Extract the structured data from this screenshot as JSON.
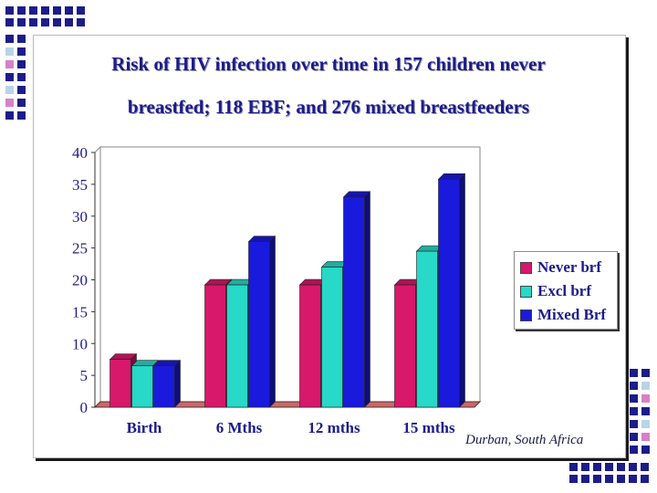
{
  "colors": {
    "title": "#1c1c8a",
    "axis_text": "#1c1c8a",
    "deco_square": "#1c1c8a",
    "deco_light": "#b8d4e8",
    "deco_pink": "#d880c8"
  },
  "chart_data": {
    "type": "bar",
    "title": "Risk of HIV infection over time in 157 children never breastfed; 118 EBF; and 276 mixed breastfeeders",
    "title_lines": [
      "Risk of HIV infection over time in 157 children never",
      "breastfed; 118 EBF; and 276 mixed breastfeeders"
    ],
    "categories": [
      "Birth",
      "6 Mths",
      "12 mths",
      "15 mths"
    ],
    "series": [
      {
        "name": "Never brf",
        "color": "#d8186a",
        "values": [
          7.5,
          19.2,
          19.2,
          19.2
        ]
      },
      {
        "name": "Excl brf",
        "color": "#28d8c8",
        "values": [
          6.5,
          19.2,
          22.0,
          24.5
        ]
      },
      {
        "name": "Mixed Brf",
        "color": "#1a1adc",
        "values": [
          6.5,
          26.0,
          33.0,
          35.8
        ]
      }
    ],
    "yticks": [
      0,
      5,
      10,
      15,
      20,
      25,
      30,
      35,
      40
    ],
    "ylim": [
      0,
      40
    ],
    "xlabel": "",
    "ylabel": "",
    "grid": false,
    "legend_position": "right",
    "annotation": "Durban, South Africa"
  }
}
